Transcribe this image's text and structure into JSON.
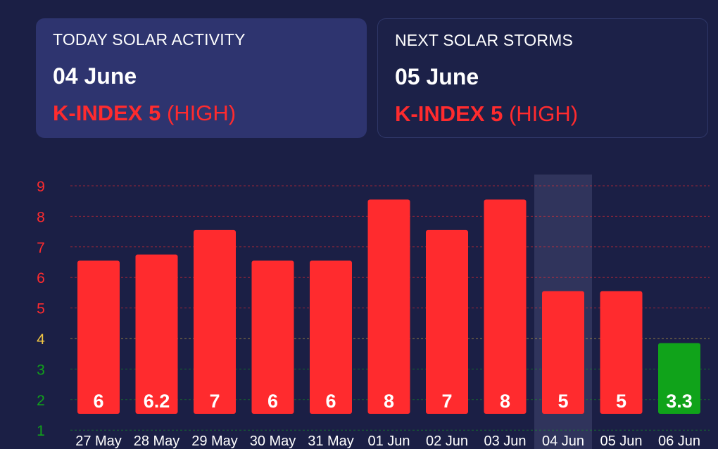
{
  "cards": [
    {
      "title": "TODAY SOLAR ACTIVITY",
      "date": "04 June",
      "kindex": "K-INDEX 5",
      "level": "(HIGH)"
    },
    {
      "title": "NEXT SOLAR STORMS",
      "date": "05 June",
      "kindex": "K-INDEX 5",
      "level": "(HIGH)"
    }
  ],
  "colors": {
    "background": "#1b1f45",
    "high": "#ff2b2e",
    "moderate": "#f2c744",
    "low": "#10a31a",
    "highlight_column": "#30345c"
  },
  "chart_data": {
    "type": "bar",
    "categories": [
      "27 May",
      "28 May",
      "29 May",
      "30 May",
      "31 May",
      "01 Jun",
      "02 Jun",
      "03 Jun",
      "04 Jun",
      "05 Jun",
      "06 Jun"
    ],
    "values": [
      6,
      6.2,
      7,
      6,
      6,
      8,
      7,
      8,
      5,
      5,
      3.3
    ],
    "value_labels": [
      "6",
      "6.2",
      "7",
      "6",
      "6",
      "8",
      "7",
      "8",
      "5",
      "5",
      "3.3"
    ],
    "bar_colors": [
      "#ff2b2e",
      "#ff2b2e",
      "#ff2b2e",
      "#ff2b2e",
      "#ff2b2e",
      "#ff2b2e",
      "#ff2b2e",
      "#ff2b2e",
      "#ff2b2e",
      "#ff2b2e",
      "#10a31a"
    ],
    "highlight_category": "04 Jun",
    "y_ticks": [
      "1",
      "2",
      "3",
      "4",
      "5",
      "6",
      "7",
      "8",
      "9"
    ],
    "y_tick_colors": [
      "#10a31a",
      "#10a31a",
      "#10a31a",
      "#f2c744",
      "#ff2b2e",
      "#ff2b2e",
      "#ff2b2e",
      "#ff2b2e",
      "#ff2b2e"
    ],
    "ylim": [
      1,
      9
    ],
    "grid": true,
    "title": "",
    "xlabel": "",
    "ylabel": ""
  }
}
